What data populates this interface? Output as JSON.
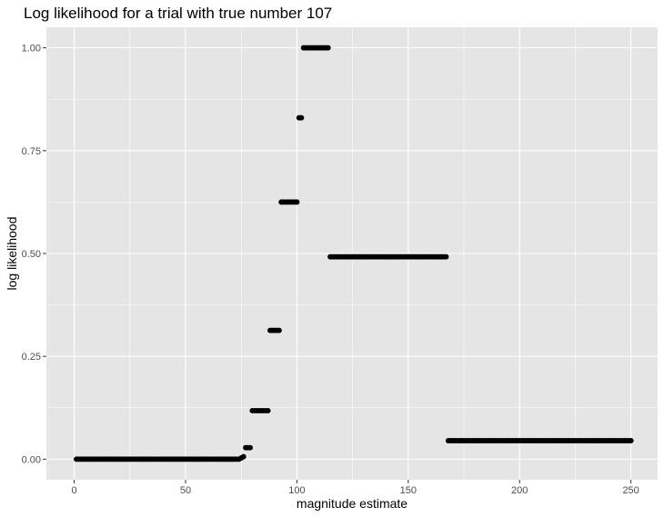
{
  "chart_data": {
    "type": "scatter",
    "title": "Log likelihood for a trial with true number 107",
    "xlabel": "magnitude estimate",
    "ylabel": "log likelihood",
    "xlim": [
      -12.5,
      262
    ],
    "ylim": [
      -0.05,
      1.05
    ],
    "x_ticks": [
      0,
      50,
      100,
      150,
      200,
      250
    ],
    "x_tick_labels": [
      "0",
      "50",
      "100",
      "150",
      "200",
      "250"
    ],
    "y_ticks": [
      0,
      0.25,
      0.5,
      0.75,
      1
    ],
    "y_tick_labels": [
      "0.00",
      "0.25",
      "0.50",
      "0.75",
      "1.00"
    ],
    "grid": true,
    "point_color": "#000000",
    "panel_color": "#e5e5e5",
    "grid_color": "#ffffff",
    "segments": [
      {
        "x_from": 1,
        "x_to": 74,
        "y": 0.0
      },
      {
        "x_from": 75,
        "x_to": 75,
        "y": 0.003
      },
      {
        "x_from": 76,
        "x_to": 76,
        "y": 0.006
      },
      {
        "x_from": 77,
        "x_to": 79,
        "y": 0.028
      },
      {
        "x_from": 80,
        "x_to": 87,
        "y": 0.118
      },
      {
        "x_from": 88,
        "x_to": 92,
        "y": 0.313
      },
      {
        "x_from": 93,
        "x_to": 100,
        "y": 0.625
      },
      {
        "x_from": 101,
        "x_to": 102,
        "y": 0.83
      },
      {
        "x_from": 103,
        "x_to": 114,
        "y": 1.0
      },
      {
        "x_from": 115,
        "x_to": 167,
        "y": 0.492
      },
      {
        "x_from": 168,
        "x_to": 250,
        "y": 0.045
      }
    ]
  }
}
